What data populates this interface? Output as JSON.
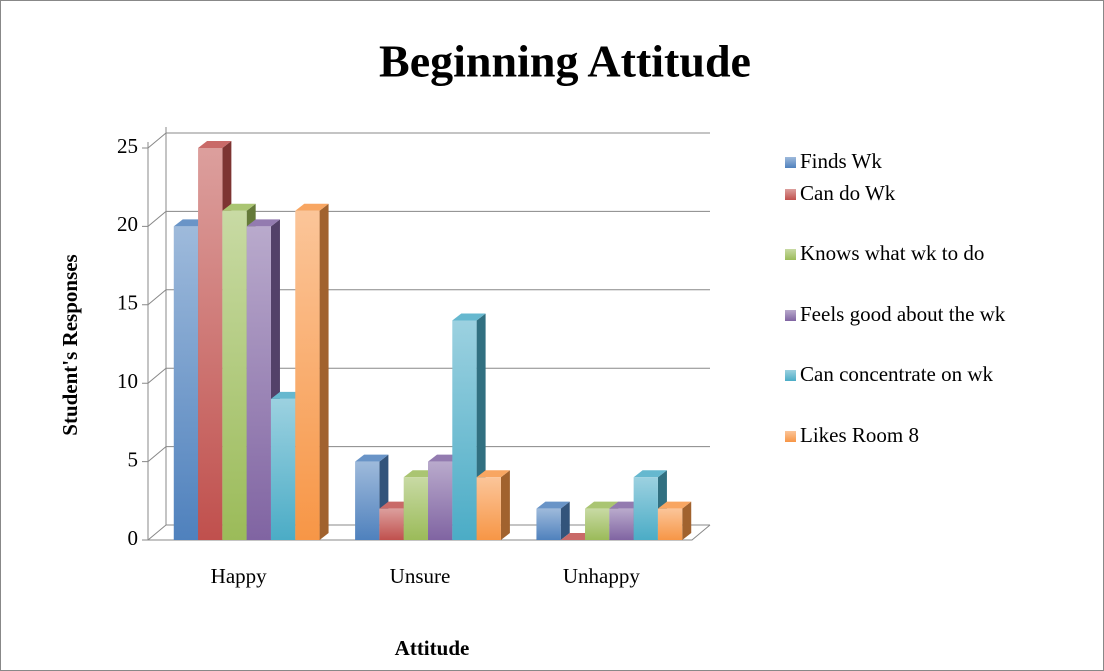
{
  "chart_data": {
    "type": "bar3d",
    "title": "Beginning Attitude",
    "x_label": "Attitude",
    "y_label": "Student's Responses",
    "categories": [
      "Happy",
      "Unsure",
      "Unhappy"
    ],
    "series": [
      {
        "name": "Finds Wk",
        "color": "#4f81bd",
        "values": [
          20,
          5,
          2
        ]
      },
      {
        "name": "Can do Wk",
        "color": "#c0504d",
        "values": [
          25,
          2,
          0
        ]
      },
      {
        "name": "Knows what wk to do",
        "color": "#9bbb59",
        "values": [
          21,
          4,
          2
        ]
      },
      {
        "name": "Feels good about the wk",
        "color": "#8064a2",
        "values": [
          20,
          5,
          2
        ]
      },
      {
        "name": "Can concentrate on wk",
        "color": "#4bacc6",
        "values": [
          9,
          14,
          4
        ]
      },
      {
        "name": "Likes Room 8",
        "color": "#f79646",
        "values": [
          21,
          4,
          2
        ]
      }
    ],
    "ylim": [
      0,
      25
    ],
    "yticks": [
      0,
      5,
      10,
      15,
      20,
      25
    ],
    "grid": true,
    "legend": "right"
  }
}
